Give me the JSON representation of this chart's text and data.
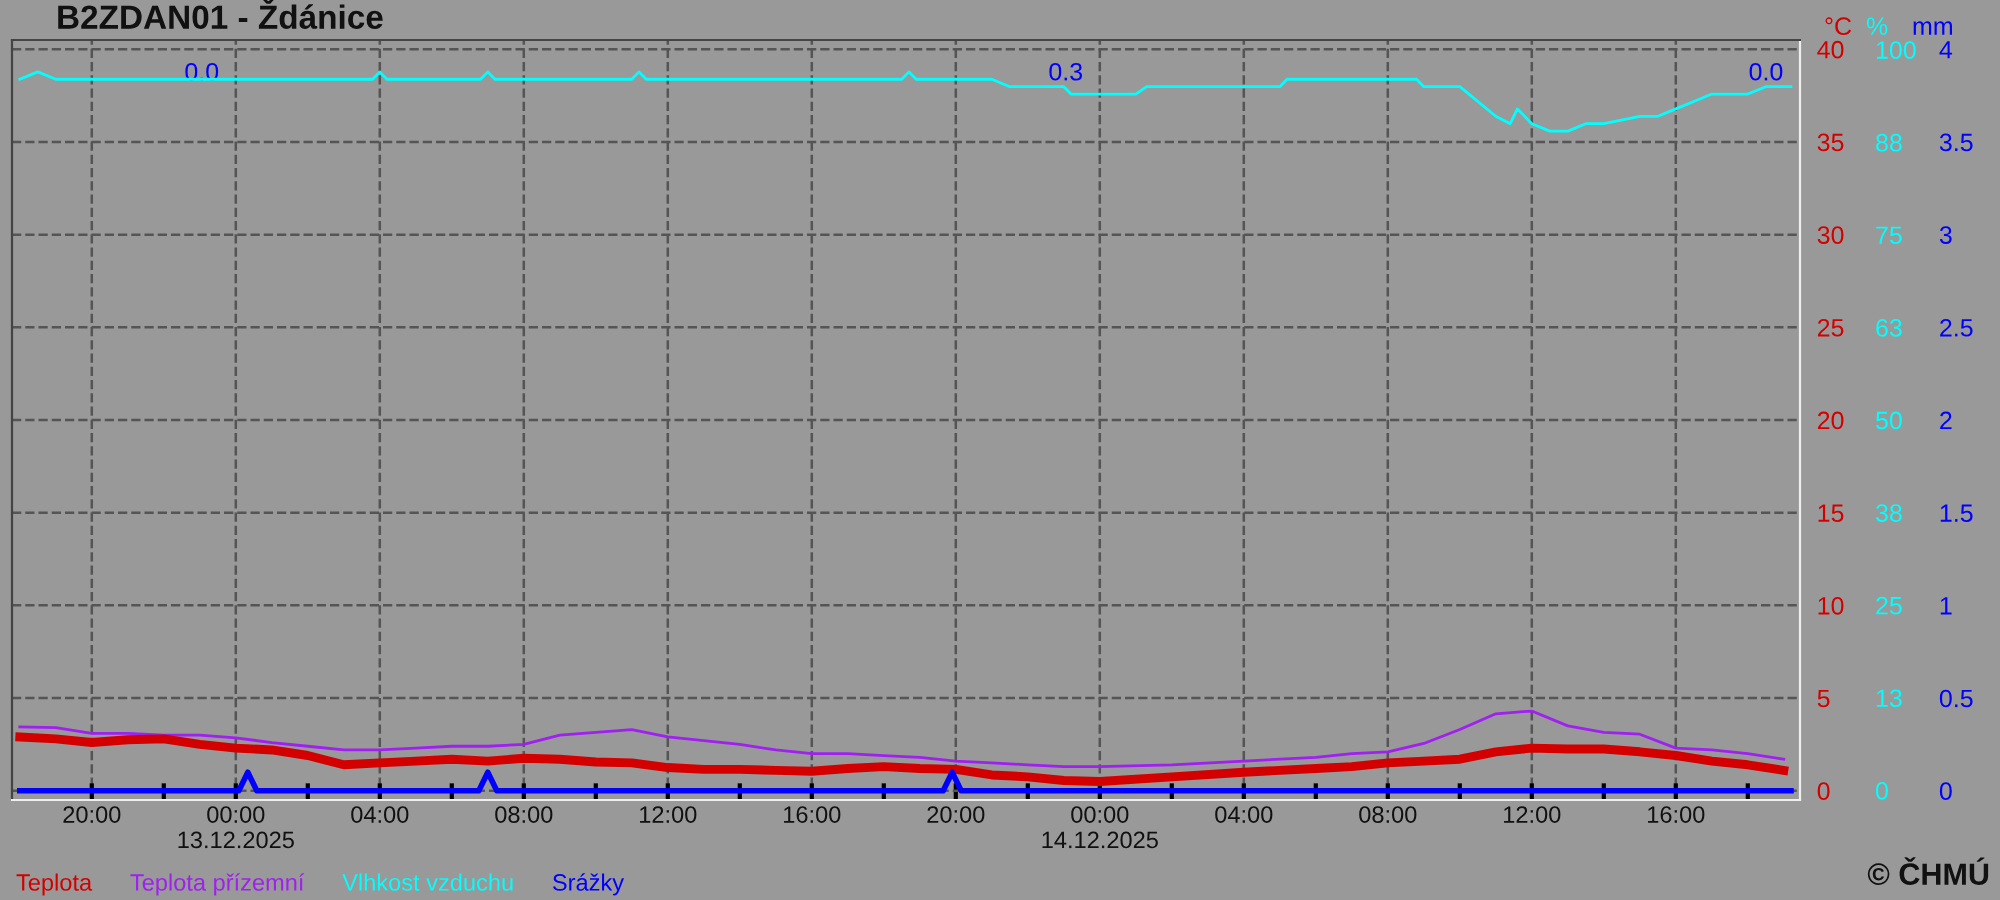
{
  "chart_data": {
    "type": "line",
    "title": "B2ZDAN01 - Ždánice",
    "ylabel": "°C",
    "y2label": "%",
    "y3label": "mm",
    "xlim": [
      "2025-12-12T17:47",
      "2025-12-14T19:27"
    ],
    "xticks": [
      {
        "value": "2025-12-12T20:00",
        "label": "20:00"
      },
      {
        "value": "2025-12-12T22:00",
        "label": null
      },
      {
        "value": "2025-12-13T00:00",
        "label": "00:00\n13.12.2025"
      },
      {
        "value": "2025-12-13T02:00",
        "label": null
      },
      {
        "value": "2025-12-13T04:00",
        "label": "04:00"
      },
      {
        "value": "2025-12-13T06:00",
        "label": null
      },
      {
        "value": "2025-12-13T08:00",
        "label": "08:00"
      },
      {
        "value": "2025-12-13T10:00",
        "label": null
      },
      {
        "value": "2025-12-13T12:00",
        "label": "12:00"
      },
      {
        "value": "2025-12-13T14:00",
        "label": null
      },
      {
        "value": "2025-12-13T16:00",
        "label": "16:00"
      },
      {
        "value": "2025-12-13T18:00",
        "label": null
      },
      {
        "value": "2025-12-13T20:00",
        "label": "20:00"
      },
      {
        "value": "2025-12-13T22:00",
        "label": null
      },
      {
        "value": "2025-12-14T00:00",
        "label": "00:00\n14.12.2025"
      },
      {
        "value": "2025-12-14T02:00",
        "label": null
      },
      {
        "value": "2025-12-14T04:00",
        "label": "04:00"
      },
      {
        "value": "2025-12-14T06:00",
        "label": null
      },
      {
        "value": "2025-12-14T08:00",
        "label": "08:00"
      },
      {
        "value": "2025-12-14T10:00",
        "label": null
      },
      {
        "value": "2025-12-14T12:00",
        "label": "12:00"
      },
      {
        "value": "2025-12-14T14:00",
        "label": null
      },
      {
        "value": "2025-12-14T16:00",
        "label": "16:00"
      },
      {
        "value": "2025-12-14T18:00",
        "label": null
      }
    ],
    "ylim": [
      -0.5,
      40.5
    ],
    "yticks": [
      0,
      5,
      10,
      15,
      20,
      25,
      30,
      35,
      40
    ],
    "y2lim": [
      -1.3,
      101.3
    ],
    "y2ticks": [
      0,
      {
        "value": 12.5,
        "label": "13"
      },
      25,
      {
        "value": 37.5,
        "label": "38"
      },
      50,
      {
        "value": 62.5,
        "label": "63"
      },
      75,
      {
        "value": 87.5,
        "label": "88"
      },
      100
    ],
    "y3lim": [
      -0.05,
      4.05
    ],
    "y3ticks": [
      0,
      0.5,
      1,
      1.5,
      2,
      2.5,
      3,
      3.5,
      4
    ],
    "grid": true,
    "legend": "bottom left",
    "line_style": "solid",
    "marker": "none",
    "series": [
      {
        "name": "Teplota",
        "color": "#d40000",
        "x": [
          "2025-12-12T18:00",
          "2025-12-12T19:00",
          "2025-12-12T20:00",
          "2025-12-12T21:00",
          "2025-12-12T22:00",
          "2025-12-12T23:00",
          "2025-12-13T00:00",
          "2025-12-13T01:00",
          "2025-12-13T02:00",
          "2025-12-13T03:00",
          "2025-12-13T04:00",
          "2025-12-13T05:00",
          "2025-12-13T06:00",
          "2025-12-13T07:00",
          "2025-12-13T08:00",
          "2025-12-13T09:00",
          "2025-12-13T10:00",
          "2025-12-13T11:00",
          "2025-12-13T12:00",
          "2025-12-13T13:00",
          "2025-12-13T14:00",
          "2025-12-13T15:00",
          "2025-12-13T16:00",
          "2025-12-13T17:00",
          "2025-12-13T18:00",
          "2025-12-13T19:00",
          "2025-12-13T20:00",
          "2025-12-13T21:00",
          "2025-12-13T22:00",
          "2025-12-13T23:00",
          "2025-12-14T00:00",
          "2025-12-14T02:00",
          "2025-12-14T04:00",
          "2025-12-14T06:00",
          "2025-12-14T07:00",
          "2025-12-14T08:00",
          "2025-12-14T09:00",
          "2025-12-14T10:00",
          "2025-12-14T11:00",
          "2025-12-14T12:00",
          "2025-12-14T13:00",
          "2025-12-14T14:00",
          "2025-12-14T15:00",
          "2025-12-14T16:00",
          "2025-12-14T17:00",
          "2025-12-14T18:00",
          "2025-12-14T19:00"
        ],
        "values": [
          2.9,
          2.8,
          2.6,
          2.75,
          2.8,
          2.5,
          2.3,
          2.2,
          1.9,
          1.4,
          1.5,
          1.6,
          1.7,
          1.6,
          1.75,
          1.7,
          1.55,
          1.5,
          1.25,
          1.15,
          1.15,
          1.1,
          1.05,
          1.2,
          1.3,
          1.2,
          1.15,
          0.85,
          0.75,
          0.55,
          0.5,
          0.75,
          1.0,
          1.2,
          1.3,
          1.5,
          1.6,
          1.7,
          2.1,
          2.3,
          2.25,
          2.25,
          2.1,
          1.9,
          1.6,
          1.4,
          1.1
        ]
      },
      {
        "name": "Teplota přízemní",
        "color": "#a020f0",
        "x": [
          "2025-12-12T18:00",
          "2025-12-12T19:00",
          "2025-12-12T20:00",
          "2025-12-12T21:00",
          "2025-12-12T22:00",
          "2025-12-12T23:00",
          "2025-12-13T00:00",
          "2025-12-13T01:00",
          "2025-12-13T02:00",
          "2025-12-13T03:00",
          "2025-12-13T04:00",
          "2025-12-13T05:00",
          "2025-12-13T06:00",
          "2025-12-13T07:00",
          "2025-12-13T08:00",
          "2025-12-13T09:00",
          "2025-12-13T10:00",
          "2025-12-13T11:00",
          "2025-12-13T12:00",
          "2025-12-13T13:00",
          "2025-12-13T14:00",
          "2025-12-13T15:00",
          "2025-12-13T16:00",
          "2025-12-13T17:00",
          "2025-12-13T18:00",
          "2025-12-13T19:00",
          "2025-12-13T20:00",
          "2025-12-13T21:00",
          "2025-12-13T22:00",
          "2025-12-13T23:00",
          "2025-12-14T00:00",
          "2025-12-14T02:00",
          "2025-12-14T04:00",
          "2025-12-14T06:00",
          "2025-12-14T07:00",
          "2025-12-14T08:00",
          "2025-12-14T09:00",
          "2025-12-14T10:00",
          "2025-12-14T11:00",
          "2025-12-14T12:00",
          "2025-12-14T13:00",
          "2025-12-14T14:00",
          "2025-12-14T15:00",
          "2025-12-14T16:00",
          "2025-12-14T17:00",
          "2025-12-14T18:00",
          "2025-12-14T19:00"
        ],
        "values": [
          3.45,
          3.4,
          3.1,
          3.1,
          3.0,
          3.0,
          2.85,
          2.6,
          2.4,
          2.2,
          2.2,
          2.3,
          2.4,
          2.4,
          2.5,
          3.0,
          3.15,
          3.3,
          2.9,
          2.7,
          2.5,
          2.2,
          2.0,
          2.0,
          1.9,
          1.8,
          1.6,
          1.5,
          1.4,
          1.3,
          1.3,
          1.4,
          1.6,
          1.8,
          2.0,
          2.1,
          2.55,
          3.3,
          4.15,
          4.3,
          3.5,
          3.15,
          3.05,
          2.3,
          2.2,
          2.0,
          1.7
        ]
      },
      {
        "name": "Vlhkost vzduchu",
        "color": "#00ffff",
        "axis": "y2",
        "x": [
          "2025-12-12T18:00",
          "2025-12-12T18:30",
          "2025-12-12T19:00",
          "2025-12-13T03:48",
          "2025-12-13T04:00",
          "2025-12-13T04:12",
          "2025-12-13T06:48",
          "2025-12-13T07:00",
          "2025-12-13T07:12",
          "2025-12-13T11:00",
          "2025-12-13T11:12",
          "2025-12-13T11:24",
          "2025-12-13T18:30",
          "2025-12-13T18:42",
          "2025-12-13T18:54",
          "2025-12-13T21:00",
          "2025-12-13T21:30",
          "2025-12-13T23:00",
          "2025-12-13T23:12",
          "2025-12-14T01:00",
          "2025-12-14T01:18",
          "2025-12-14T05:00",
          "2025-12-14T05:12",
          "2025-12-14T08:00",
          "2025-12-14T08:48",
          "2025-12-14T09:00",
          "2025-12-14T10:00",
          "2025-12-14T11:00",
          "2025-12-14T11:24",
          "2025-12-14T11:36",
          "2025-12-14T12:00",
          "2025-12-14T12:30",
          "2025-12-14T13:00",
          "2025-12-14T13:30",
          "2025-12-14T14:00",
          "2025-12-14T15:00",
          "2025-12-14T15:30",
          "2025-12-14T16:00",
          "2025-12-14T16:30",
          "2025-12-14T17:00",
          "2025-12-14T18:00",
          "2025-12-14T18:30",
          "2025-12-14T19:00",
          "2025-12-14T19:12"
        ],
        "values": [
          96,
          97,
          96,
          96,
          97,
          96,
          96,
          97,
          96,
          96,
          97,
          96,
          96,
          97,
          96,
          96,
          95,
          95,
          94,
          94,
          95,
          95,
          96,
          96,
          96,
          95,
          95,
          91,
          90,
          92,
          90,
          89,
          89,
          90,
          90,
          91,
          91,
          92,
          93,
          94,
          94,
          95,
          95,
          95
        ]
      },
      {
        "name": "Srážky",
        "color": "#0000ff",
        "axis": "y3",
        "x": [
          "2025-12-12T18:00",
          "2025-12-13T00:05",
          "2025-12-13T00:20",
          "2025-12-13T00:35",
          "2025-12-13T06:45",
          "2025-12-13T07:00",
          "2025-12-13T07:15",
          "2025-12-13T19:39",
          "2025-12-13T19:54",
          "2025-12-13T20:09",
          "2025-12-14T19:12"
        ],
        "values": [
          0,
          0,
          0.1,
          0,
          0,
          0.1,
          0,
          0,
          0.1,
          0,
          0
        ]
      }
    ],
    "annotations": [
      "0.0",
      "0.3",
      "0.0",
      "© ČHMÚ"
    ]
  }
}
